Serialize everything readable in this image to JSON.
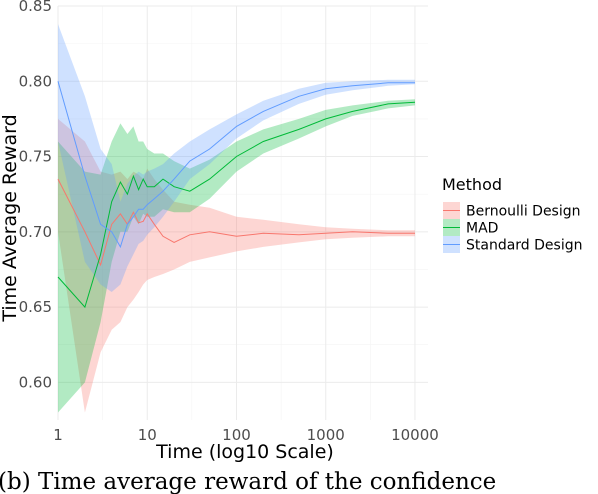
{
  "chart_data": {
    "type": "line",
    "xlabel": "Time (log10 Scale)",
    "ylabel": "Time Average Reward",
    "x_scale": "log10",
    "xlim": [
      1,
      14000
    ],
    "ylim": [
      0.575,
      0.85
    ],
    "x_ticks": [
      1,
      10,
      100,
      1000,
      10000
    ],
    "x_tick_labels": [
      "1",
      "10",
      "100",
      "1000",
      "10000"
    ],
    "y_ticks": [
      0.6,
      0.65,
      0.7,
      0.75,
      0.8,
      0.85
    ],
    "y_tick_labels": [
      "0.60",
      "0.65",
      "0.70",
      "0.75",
      "0.80",
      "0.85"
    ],
    "grid": true,
    "legend": {
      "title": "Method",
      "position": "right"
    },
    "series": [
      {
        "name": "Bernoulli Design",
        "color": "#F8766D",
        "x": [
          1,
          2,
          3,
          4,
          5,
          6,
          7,
          8,
          9,
          10,
          12,
          15,
          20,
          30,
          50,
          100,
          200,
          500,
          1000,
          2000,
          5000,
          10000
        ],
        "y": [
          0.735,
          0.7,
          0.678,
          0.705,
          0.712,
          0.705,
          0.713,
          0.706,
          0.707,
          0.712,
          0.705,
          0.697,
          0.693,
          0.698,
          0.7,
          0.697,
          0.699,
          0.698,
          0.699,
          0.7,
          0.699,
          0.699
        ],
        "lower": [
          0.7,
          0.58,
          0.62,
          0.635,
          0.64,
          0.65,
          0.655,
          0.66,
          0.665,
          0.668,
          0.67,
          0.672,
          0.675,
          0.68,
          0.683,
          0.687,
          0.69,
          0.693,
          0.695,
          0.696,
          0.697,
          0.697
        ],
        "upper": [
          0.775,
          0.76,
          0.74,
          0.738,
          0.74,
          0.735,
          0.74,
          0.738,
          0.735,
          0.742,
          0.735,
          0.728,
          0.72,
          0.718,
          0.716,
          0.71,
          0.708,
          0.705,
          0.703,
          0.702,
          0.701,
          0.701
        ]
      },
      {
        "name": "MAD",
        "color": "#00BA38",
        "x": [
          1,
          2,
          3,
          4,
          5,
          6,
          7,
          8,
          9,
          10,
          12,
          15,
          20,
          30,
          50,
          100,
          200,
          500,
          1000,
          2000,
          5000,
          10000
        ],
        "y": [
          0.67,
          0.65,
          0.685,
          0.72,
          0.733,
          0.725,
          0.737,
          0.728,
          0.735,
          0.73,
          0.73,
          0.735,
          0.73,
          0.727,
          0.735,
          0.75,
          0.76,
          0.768,
          0.775,
          0.78,
          0.785,
          0.786
        ],
        "lower": [
          0.58,
          0.6,
          0.64,
          0.68,
          0.7,
          0.7,
          0.71,
          0.705,
          0.712,
          0.71,
          0.71,
          0.715,
          0.713,
          0.713,
          0.722,
          0.74,
          0.752,
          0.762,
          0.77,
          0.777,
          0.782,
          0.784
        ],
        "upper": [
          0.76,
          0.74,
          0.738,
          0.76,
          0.772,
          0.765,
          0.77,
          0.76,
          0.76,
          0.755,
          0.752,
          0.752,
          0.747,
          0.742,
          0.748,
          0.76,
          0.768,
          0.775,
          0.781,
          0.784,
          0.787,
          0.788
        ]
      },
      {
        "name": "Standard Design",
        "color": "#619CFF",
        "x": [
          1,
          2,
          3,
          4,
          5,
          6,
          7,
          8,
          9,
          10,
          12,
          15,
          20,
          30,
          50,
          100,
          200,
          500,
          1000,
          2000,
          5000,
          10000
        ],
        "y": [
          0.8,
          0.737,
          0.705,
          0.7,
          0.69,
          0.705,
          0.71,
          0.715,
          0.715,
          0.718,
          0.722,
          0.727,
          0.735,
          0.747,
          0.755,
          0.77,
          0.78,
          0.79,
          0.795,
          0.797,
          0.799,
          0.799
        ],
        "lower": [
          0.76,
          0.68,
          0.665,
          0.66,
          0.665,
          0.677,
          0.685,
          0.692,
          0.694,
          0.698,
          0.703,
          0.71,
          0.72,
          0.735,
          0.745,
          0.762,
          0.774,
          0.785,
          0.791,
          0.794,
          0.797,
          0.798
        ],
        "upper": [
          0.838,
          0.79,
          0.755,
          0.745,
          0.72,
          0.732,
          0.737,
          0.74,
          0.738,
          0.74,
          0.742,
          0.745,
          0.752,
          0.76,
          0.768,
          0.778,
          0.787,
          0.795,
          0.799,
          0.8,
          0.801,
          0.801
        ]
      }
    ]
  },
  "caption": "(b) Time average reward of the confidence"
}
